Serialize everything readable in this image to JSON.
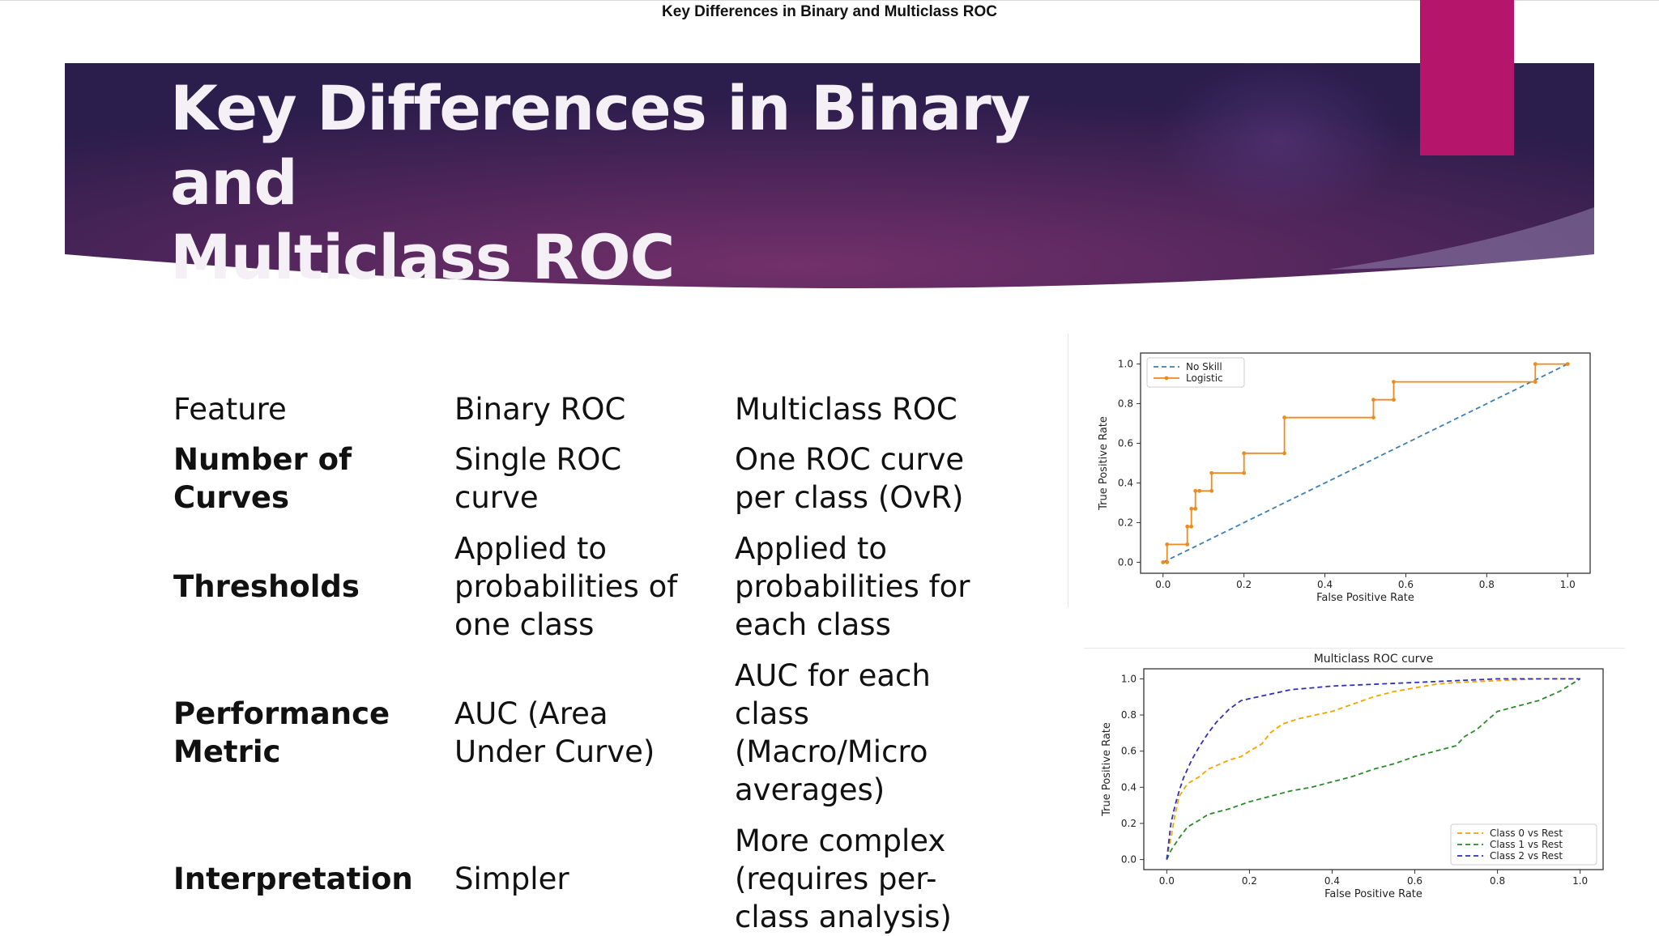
{
  "window": {
    "title": "Key Differences in Binary and Multiclass ROC"
  },
  "slide": {
    "title_line1": "Key Differences in Binary and",
    "title_line2": "Multiclass ROC",
    "colors": {
      "banner_dark": "#2e1f4f",
      "banner_mid": "#6a2c63",
      "accent": "#b5156a"
    }
  },
  "table": {
    "headers": [
      "Feature",
      "Binary ROC",
      "Multiclass ROC"
    ],
    "rows": [
      {
        "feature": [
          "Number of",
          "Curves"
        ],
        "binary": [
          "Single ROC",
          "curve"
        ],
        "multiclass": [
          "One ROC curve",
          "per class (OvR)"
        ]
      },
      {
        "feature": [
          "Thresholds"
        ],
        "binary": [
          "Applied to",
          "probabilities of",
          "one class"
        ],
        "multiclass": [
          "Applied to",
          "probabilities for",
          "each class"
        ]
      },
      {
        "feature": [
          "Performance",
          "Metric"
        ],
        "binary": [
          "AUC (Area",
          "Under Curve)"
        ],
        "multiclass": [
          "AUC for each",
          "class",
          "(Macro/Micro",
          "averages)"
        ]
      },
      {
        "feature": [
          "Interpretation"
        ],
        "binary": [
          "Simpler"
        ],
        "multiclass": [
          "More complex",
          "(requires per-",
          "class analysis)"
        ]
      }
    ]
  },
  "chart_data": [
    {
      "type": "line",
      "title": "",
      "xlabel": "False Positive Rate",
      "ylabel": "True Positive Rate",
      "xlim": [
        0,
        1
      ],
      "ylim": [
        0,
        1
      ],
      "xticks": [
        "0.0",
        "0.2",
        "0.4",
        "0.6",
        "0.8",
        "1.0"
      ],
      "yticks": [
        "0.0",
        "0.2",
        "0.4",
        "0.6",
        "0.8",
        "1.0"
      ],
      "legend_position": "top-left",
      "series": [
        {
          "name": "No Skill",
          "color": "#3b7fb6",
          "style": "dashed",
          "x": [
            0,
            1
          ],
          "y": [
            0,
            1
          ]
        },
        {
          "name": "Logistic",
          "color": "#f08a1c",
          "style": "solid-markers",
          "x": [
            0,
            0,
            0.01,
            0.01,
            0.06,
            0.06,
            0.07,
            0.07,
            0.08,
            0.08,
            0.09,
            0.09,
            0.12,
            0.12,
            0.2,
            0.2,
            0.3,
            0.3,
            0.52,
            0.52,
            0.57,
            0.57,
            0.92,
            0.92,
            1.0
          ],
          "y": [
            0,
            0,
            0,
            0.09,
            0.09,
            0.18,
            0.18,
            0.27,
            0.27,
            0.36,
            0.36,
            0.36,
            0.36,
            0.45,
            0.45,
            0.55,
            0.55,
            0.73,
            0.73,
            0.82,
            0.82,
            0.91,
            0.91,
            1.0,
            1.0
          ]
        }
      ]
    },
    {
      "type": "line",
      "title": "Multiclass ROC curve",
      "xlabel": "False Positive Rate",
      "ylabel": "True Positive Rate",
      "xlim": [
        0,
        1
      ],
      "ylim": [
        0,
        1
      ],
      "xticks": [
        "0.0",
        "0.2",
        "0.4",
        "0.6",
        "0.8",
        "1.0"
      ],
      "yticks": [
        "0.0",
        "0.2",
        "0.4",
        "0.6",
        "0.8",
        "1.0"
      ],
      "legend_position": "bottom-right",
      "series": [
        {
          "name": "Class 0 vs Rest",
          "color": "#f0a500",
          "style": "dashed",
          "x": [
            0,
            0.01,
            0.02,
            0.03,
            0.05,
            0.08,
            0.1,
            0.13,
            0.15,
            0.18,
            0.2,
            0.23,
            0.25,
            0.28,
            0.32,
            0.36,
            0.4,
            0.45,
            0.5,
            0.55,
            0.6,
            0.65,
            0.7,
            0.8,
            0.9,
            1.0
          ],
          "y": [
            0,
            0.12,
            0.25,
            0.35,
            0.42,
            0.46,
            0.5,
            0.53,
            0.55,
            0.57,
            0.6,
            0.64,
            0.7,
            0.75,
            0.78,
            0.8,
            0.82,
            0.86,
            0.9,
            0.93,
            0.95,
            0.97,
            0.98,
            0.99,
            1.0,
            1.0
          ]
        },
        {
          "name": "Class 1 vs Rest",
          "color": "#2a8a2a",
          "style": "dashed",
          "x": [
            0,
            0.01,
            0.03,
            0.05,
            0.08,
            0.1,
            0.15,
            0.2,
            0.25,
            0.3,
            0.35,
            0.4,
            0.45,
            0.5,
            0.55,
            0.6,
            0.65,
            0.7,
            0.72,
            0.75,
            0.78,
            0.8,
            0.85,
            0.9,
            0.95,
            1.0
          ],
          "y": [
            0,
            0.05,
            0.12,
            0.18,
            0.22,
            0.25,
            0.28,
            0.32,
            0.35,
            0.38,
            0.4,
            0.43,
            0.46,
            0.5,
            0.53,
            0.57,
            0.6,
            0.63,
            0.68,
            0.72,
            0.78,
            0.82,
            0.85,
            0.88,
            0.93,
            1.0
          ]
        },
        {
          "name": "Class 2 vs Rest",
          "color": "#2f2fb8",
          "style": "dashed",
          "x": [
            0,
            0.01,
            0.02,
            0.03,
            0.04,
            0.06,
            0.08,
            0.1,
            0.12,
            0.15,
            0.18,
            0.22,
            0.26,
            0.3,
            0.35,
            0.4,
            0.5,
            0.6,
            0.7,
            0.8,
            0.9,
            1.0
          ],
          "y": [
            0,
            0.2,
            0.3,
            0.38,
            0.45,
            0.55,
            0.63,
            0.7,
            0.76,
            0.83,
            0.88,
            0.9,
            0.92,
            0.94,
            0.95,
            0.96,
            0.97,
            0.98,
            0.99,
            1.0,
            1.0,
            1.0
          ]
        }
      ]
    }
  ]
}
